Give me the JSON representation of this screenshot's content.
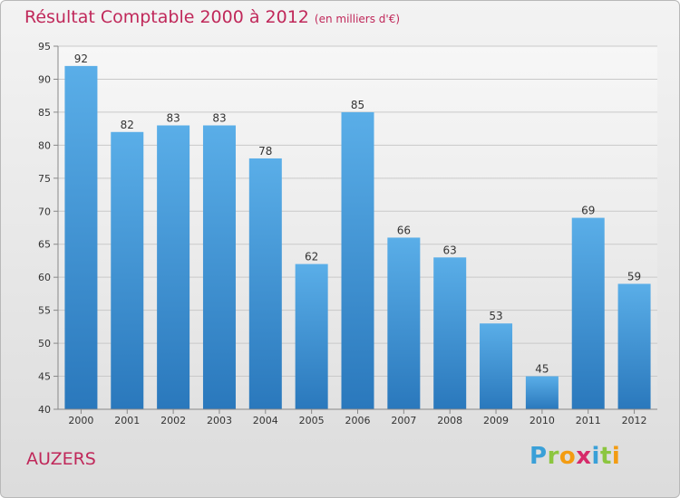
{
  "header": {
    "title": "Résultat Comptable 2000 à 2012",
    "unit": "(en milliers d'€)"
  },
  "footer": {
    "commune": "AUZERS",
    "logo": {
      "text": "Proxiti",
      "letters": [
        {
          "char": "P",
          "color": "#3aa0d8"
        },
        {
          "char": "r",
          "color": "#8cc63f"
        },
        {
          "char": "o",
          "color": "#f39c12"
        },
        {
          "char": "x",
          "color": "#d62b6a"
        },
        {
          "char": "i",
          "color": "#3aa0d8"
        },
        {
          "char": "t",
          "color": "#8cc63f"
        },
        {
          "char": "i",
          "color": "#f39c12"
        }
      ]
    }
  },
  "chart_data": {
    "type": "bar",
    "title": "Résultat Comptable 2000 à 2012",
    "subtitle": "(en milliers d'€)",
    "xlabel": "",
    "ylabel": "",
    "categories": [
      "2000",
      "2001",
      "2002",
      "2003",
      "2004",
      "2005",
      "2006",
      "2007",
      "2008",
      "2009",
      "2010",
      "2011",
      "2012"
    ],
    "values": [
      92,
      82,
      83,
      83,
      78,
      62,
      85,
      66,
      63,
      53,
      45,
      69,
      59
    ],
    "ylim": [
      40,
      95
    ],
    "yticks": [
      40,
      45,
      50,
      55,
      60,
      65,
      70,
      75,
      80,
      85,
      90,
      95
    ],
    "grid": true,
    "bar_color_top": "#5aaee8",
    "bar_color_bottom": "#2a78bc"
  }
}
